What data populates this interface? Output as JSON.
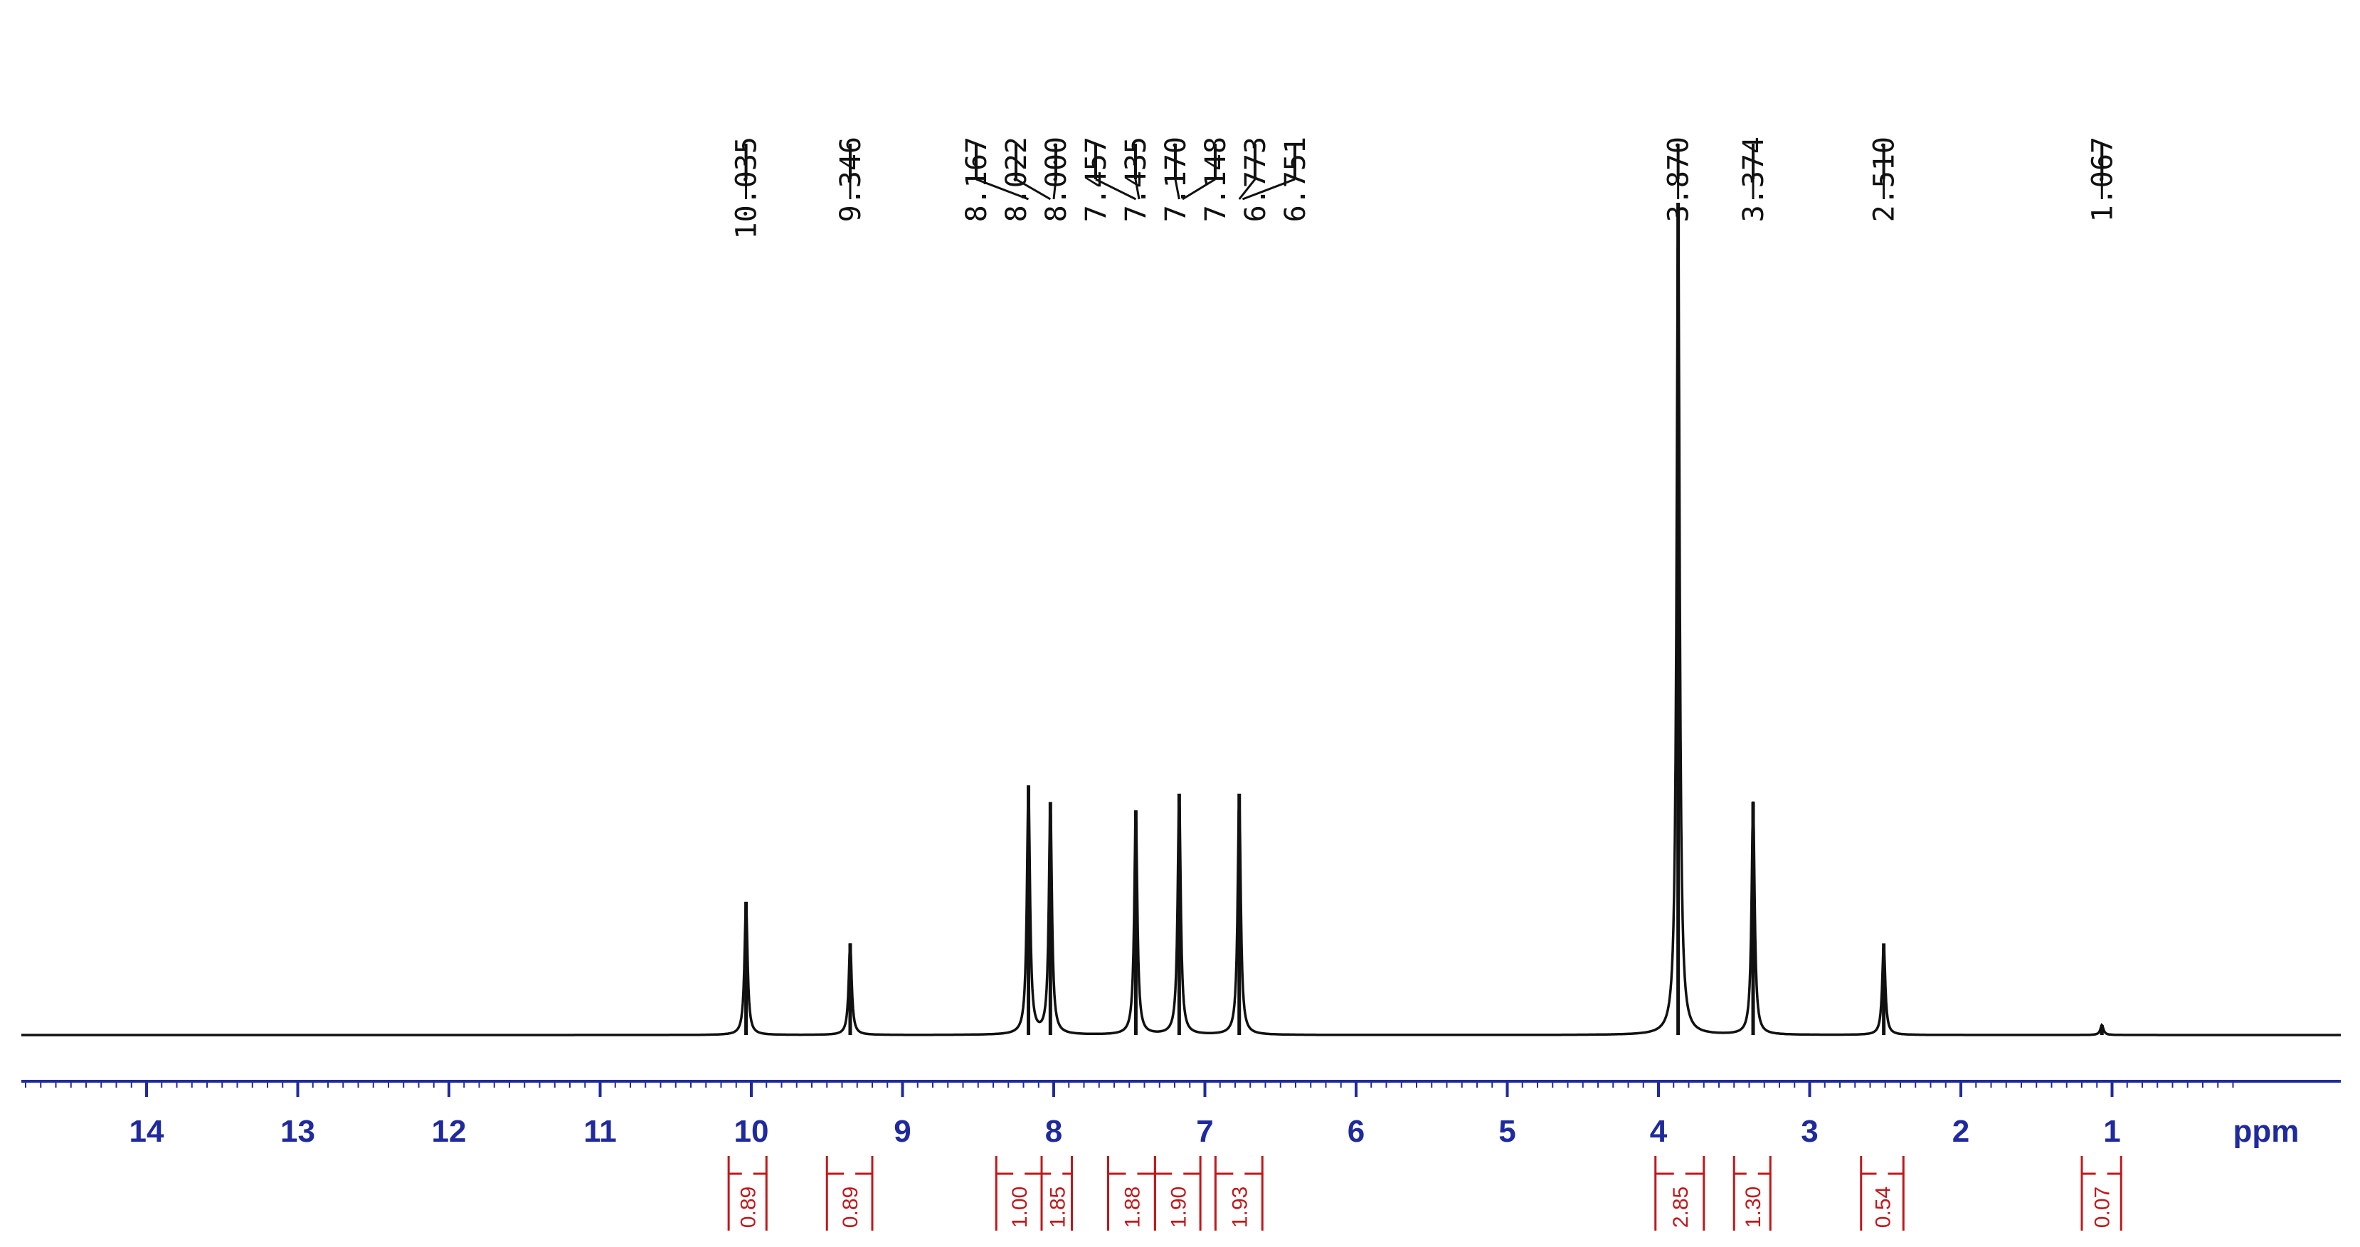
{
  "chart_data": {
    "type": "line",
    "title": "",
    "xlabel": "ppm",
    "ylabel": "",
    "xlim": [
      14.9,
      0.1
    ],
    "x_axis_reversed": true,
    "x_ticks": [
      "14",
      "13",
      "12",
      "11",
      "10",
      "9",
      "8",
      "7",
      "6",
      "5",
      "4",
      "3",
      "2",
      "1"
    ],
    "grid": false,
    "legend": "none",
    "peaks": [
      {
        "ppm": 10.035,
        "label": "10.035",
        "height": 0.16
      },
      {
        "ppm": 9.346,
        "label": "9.346",
        "height": 0.11
      },
      {
        "ppm": 8.167,
        "label": "8.167",
        "height": 0.3
      },
      {
        "ppm": 8.022,
        "label": "8.022",
        "height": 0.28
      },
      {
        "ppm": 8.0,
        "label": "8.000",
        "height": 0.0
      },
      {
        "ppm": 7.457,
        "label": "7.457",
        "height": 0.27
      },
      {
        "ppm": 7.435,
        "label": "7.435",
        "height": 0.0
      },
      {
        "ppm": 7.17,
        "label": "7.170",
        "height": 0.29
      },
      {
        "ppm": 7.148,
        "label": "7.148",
        "height": 0.0
      },
      {
        "ppm": 6.773,
        "label": "6.773",
        "height": 0.29
      },
      {
        "ppm": 6.751,
        "label": "6.751",
        "height": 0.0
      },
      {
        "ppm": 3.87,
        "label": "3.870",
        "height": 1.0
      },
      {
        "ppm": 3.374,
        "label": "3.374",
        "height": 0.28
      },
      {
        "ppm": 2.51,
        "label": "2.510",
        "height": 0.11
      },
      {
        "ppm": 1.067,
        "label": "1.067",
        "height": 0.012
      }
    ],
    "integrals": [
      {
        "from": 10.15,
        "to": 9.9,
        "label": "0.89"
      },
      {
        "from": 9.5,
        "to": 9.2,
        "label": "0.89"
      },
      {
        "from": 8.38,
        "to": 8.08,
        "label": "1.00"
      },
      {
        "from": 8.08,
        "to": 7.88,
        "label": "1.85"
      },
      {
        "from": 7.64,
        "to": 7.33,
        "label": "1.88"
      },
      {
        "from": 7.33,
        "to": 7.03,
        "label": "1.90"
      },
      {
        "from": 6.93,
        "to": 6.62,
        "label": "1.93"
      },
      {
        "from": 4.02,
        "to": 3.7,
        "label": "2.85"
      },
      {
        "from": 3.5,
        "to": 3.26,
        "label": "1.30"
      },
      {
        "from": 2.66,
        "to": 2.38,
        "label": "0.54"
      },
      {
        "from": 1.2,
        "to": 0.94,
        "label": "0.07"
      }
    ]
  },
  "colors": {
    "spectrum": "#111111",
    "axis": "#1f2a9e",
    "integral": "#c0181b"
  }
}
